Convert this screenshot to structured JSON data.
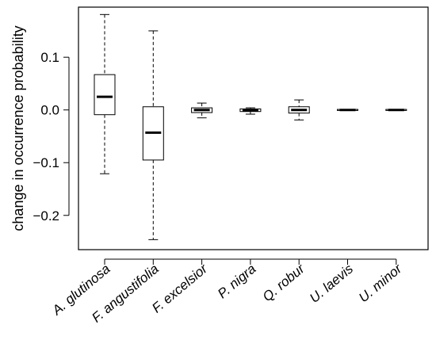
{
  "chart_data": {
    "type": "box",
    "title": "",
    "xlabel": "",
    "ylabel": "change in occurrence probability",
    "ylim": [
      -0.265,
      0.195
    ],
    "yticks": [
      0.1,
      0.0,
      -0.1,
      -0.2
    ],
    "ytick_labels": [
      "0.1",
      "0.0",
      "−0.1",
      "−0.2"
    ],
    "grid": false,
    "categories": [
      "A. glutinosa",
      "F. angustifolia",
      "F. excelsior",
      "P. nigra",
      "Q. robur",
      "U. laevis",
      "U. minor"
    ],
    "boxes": [
      {
        "whisker_low": -0.121,
        "q1": -0.009,
        "median": 0.025,
        "q3": 0.067,
        "whisker_high": 0.181
      },
      {
        "whisker_low": -0.246,
        "q1": -0.095,
        "median": -0.043,
        "q3": 0.006,
        "whisker_high": 0.15
      },
      {
        "whisker_low": -0.015,
        "q1": -0.005,
        "median": 0.0,
        "q3": 0.004,
        "whisker_high": 0.013
      },
      {
        "whisker_low": -0.008,
        "q1": -0.003,
        "median": -0.001,
        "q3": 0.002,
        "whisker_high": 0.004
      },
      {
        "whisker_low": -0.019,
        "q1": -0.006,
        "median": 0.0,
        "q3": 0.006,
        "whisker_high": 0.019
      },
      {
        "whisker_low": -0.001,
        "q1": -0.001,
        "median": 0.0,
        "q3": 0.001,
        "whisker_high": 0.001
      },
      {
        "whisker_low": -0.001,
        "q1": -0.001,
        "median": 0.0,
        "q3": 0.001,
        "whisker_high": 0.001
      }
    ]
  }
}
